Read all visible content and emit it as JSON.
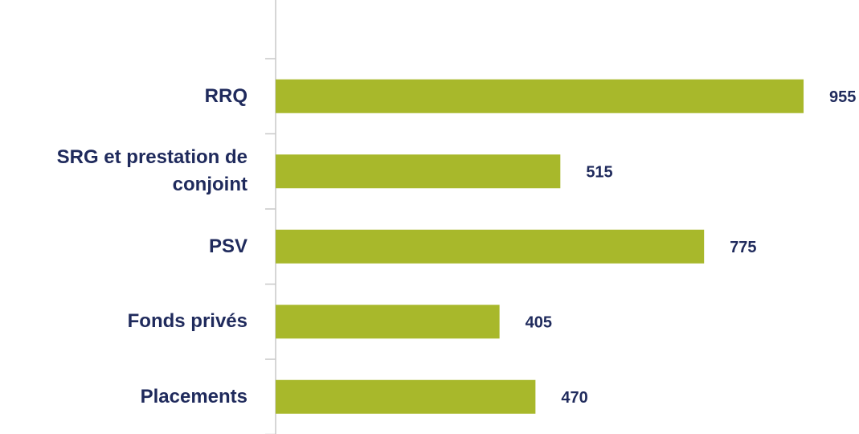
{
  "chart_data": {
    "type": "bar",
    "orientation": "horizontal",
    "categories": [
      "RRQ",
      "SRG et prestation de conjoint",
      "PSV",
      "Fonds privés",
      "Placements"
    ],
    "values": [
      955,
      515,
      775,
      405,
      470
    ],
    "color": "#a8b82b"
  }
}
